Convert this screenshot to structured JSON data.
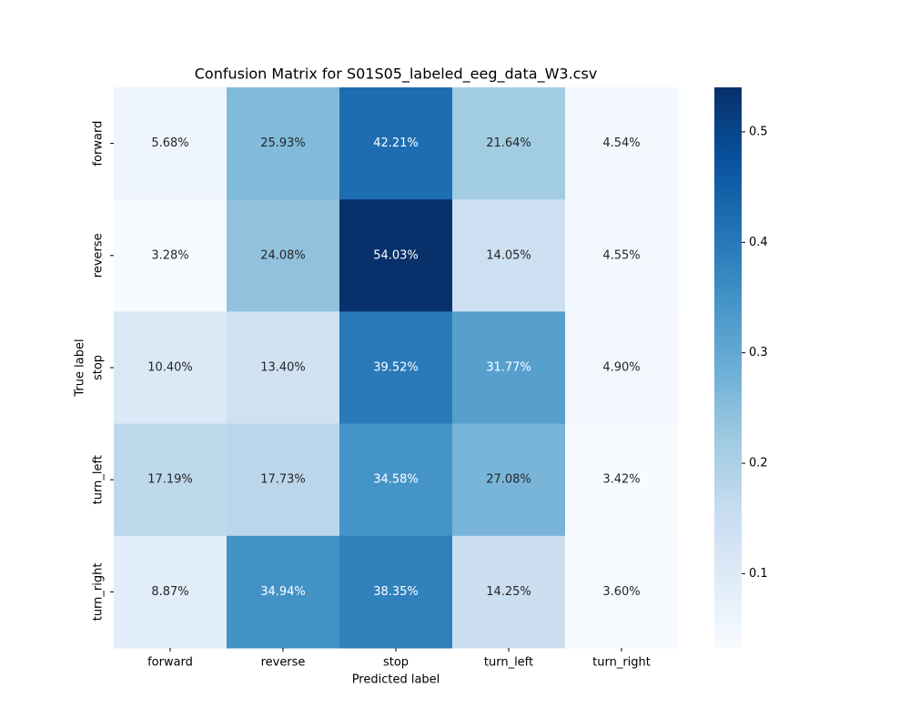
{
  "chart_data": {
    "type": "heatmap",
    "title": "Confusion Matrix for S01S05_labeled_eeg_data_W3.csv",
    "x_label": "Predicted label",
    "y_label": "True label",
    "x_categories": [
      "forward",
      "reverse",
      "stop",
      "turn_left",
      "turn_right"
    ],
    "y_categories": [
      "forward",
      "reverse",
      "stop",
      "turn_left",
      "turn_right"
    ],
    "values": [
      [
        0.0568,
        0.2593,
        0.4221,
        0.2164,
        0.0454
      ],
      [
        0.0328,
        0.2408,
        0.5403,
        0.1405,
        0.0455
      ],
      [
        0.104,
        0.134,
        0.3952,
        0.3177,
        0.049
      ],
      [
        0.1719,
        0.1773,
        0.3458,
        0.2708,
        0.0342
      ],
      [
        0.0887,
        0.3494,
        0.3835,
        0.1425,
        0.036
      ]
    ],
    "value_labels": [
      [
        "5.68%",
        "25.93%",
        "42.21%",
        "21.64%",
        "4.54%"
      ],
      [
        "3.28%",
        "24.08%",
        "54.03%",
        "14.05%",
        "4.55%"
      ],
      [
        "10.40%",
        "13.40%",
        "39.52%",
        "31.77%",
        "4.90%"
      ],
      [
        "17.19%",
        "17.73%",
        "34.58%",
        "27.08%",
        "3.42%"
      ],
      [
        "8.87%",
        "34.94%",
        "38.35%",
        "14.25%",
        "3.60%"
      ]
    ],
    "colormap": [
      "#f7fbff",
      "#deebf7",
      "#c6dbef",
      "#9ecae1",
      "#6baed6",
      "#4292c6",
      "#2171b5",
      "#08519c",
      "#08306b"
    ],
    "clim": [
      0.0328,
      0.5403
    ],
    "cticks": [
      0.1,
      0.2,
      0.3,
      0.4,
      0.5
    ]
  }
}
